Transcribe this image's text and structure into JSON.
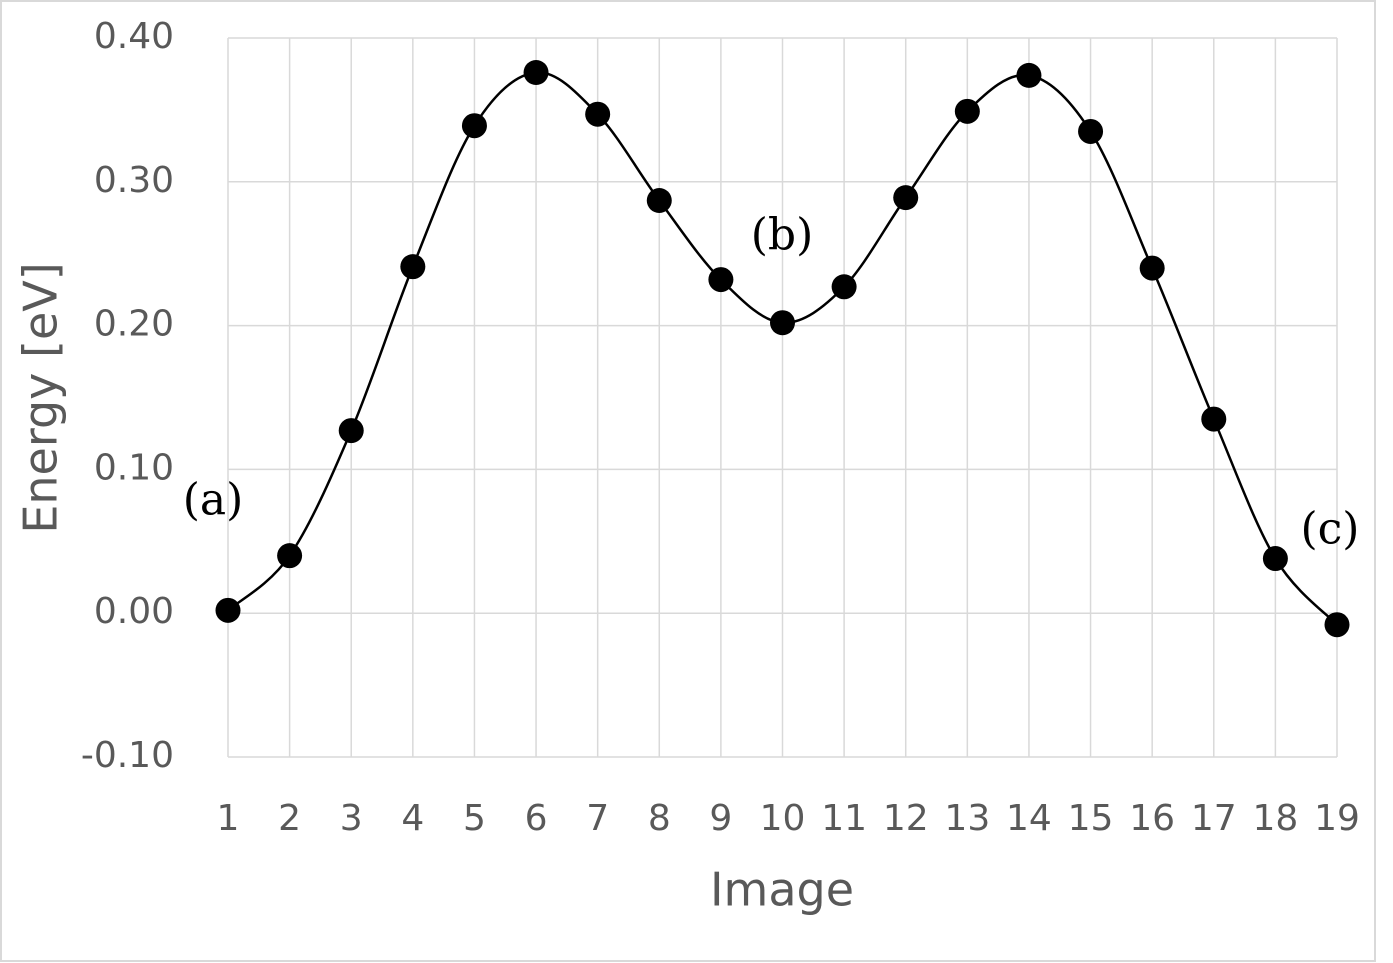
{
  "chart_data": {
    "type": "line",
    "x_label": "Image",
    "y_label": "Energy [eV]",
    "x": [
      1,
      2,
      3,
      4,
      5,
      6,
      7,
      8,
      9,
      10,
      11,
      12,
      13,
      14,
      15,
      16,
      17,
      18,
      19
    ],
    "series": [
      {
        "color": "#000000",
        "values": [
          0.002,
          0.04,
          0.127,
          0.241,
          0.339,
          0.376,
          0.347,
          0.287,
          0.232,
          0.202,
          0.227,
          0.289,
          0.349,
          0.374,
          0.335,
          0.24,
          0.135,
          0.038,
          -0.008
        ]
      }
    ],
    "xlim": [
      1,
      19
    ],
    "xticks": [
      1,
      2,
      3,
      4,
      5,
      6,
      7,
      8,
      9,
      10,
      11,
      12,
      13,
      14,
      15,
      16,
      17,
      18,
      19
    ],
    "ylim": [
      -0.1,
      0.4
    ],
    "yticks": [
      {
        "value": -0.1,
        "label": "-0.10"
      },
      {
        "value": 0,
        "label": "0.00"
      },
      {
        "value": 0.1,
        "label": "0.10"
      },
      {
        "value": 0.2,
        "label": "0.20"
      },
      {
        "value": 0.3,
        "label": "0.30"
      },
      {
        "value": 0.4,
        "label": "0.40"
      }
    ],
    "grid": true,
    "annotations": [
      "(a)",
      "(b)",
      "(c)"
    ]
  }
}
